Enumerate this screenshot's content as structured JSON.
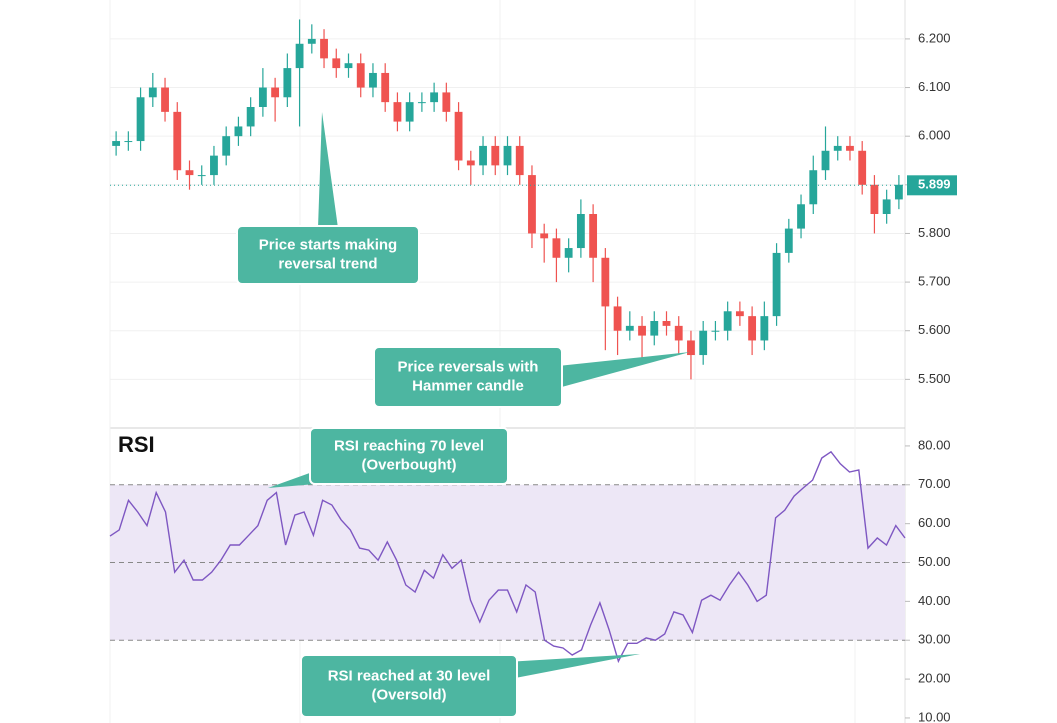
{
  "chart_data": [
    {
      "type": "candlestick",
      "open": [
        5.98,
        5.99,
        5.99,
        6.08,
        6.1,
        6.05,
        5.93,
        5.92,
        5.92,
        5.96,
        6.0,
        6.02,
        6.06,
        6.1,
        6.08,
        6.14,
        6.19,
        6.2,
        6.16,
        6.14,
        6.15,
        6.1,
        6.13,
        6.07,
        6.03,
        6.07,
        6.07,
        6.09,
        6.05,
        5.95,
        5.94,
        5.98,
        5.94,
        5.98,
        5.92,
        5.8,
        5.79,
        5.75,
        5.77,
        5.84,
        5.75,
        5.65,
        5.6,
        5.61,
        5.59,
        5.62,
        5.61,
        5.58,
        5.55,
        5.6,
        5.6,
        5.64,
        5.63,
        5.58,
        5.63,
        5.76,
        5.81,
        5.86,
        5.93,
        5.97,
        5.98,
        5.97,
        5.9,
        5.84,
        5.87
      ],
      "high": [
        6.01,
        6.01,
        6.1,
        6.13,
        6.12,
        6.07,
        5.95,
        5.94,
        5.98,
        6.02,
        6.04,
        6.08,
        6.14,
        6.12,
        6.17,
        6.24,
        6.23,
        6.22,
        6.18,
        6.17,
        6.17,
        6.15,
        6.15,
        6.09,
        6.09,
        6.09,
        6.11,
        6.11,
        6.07,
        5.97,
        6.0,
        6.0,
        6.0,
        6.0,
        5.94,
        5.82,
        5.81,
        5.79,
        5.87,
        5.86,
        5.77,
        5.67,
        5.64,
        5.63,
        5.64,
        5.64,
        5.63,
        5.6,
        5.62,
        5.62,
        5.66,
        5.66,
        5.65,
        5.66,
        5.78,
        5.83,
        5.88,
        5.96,
        6.02,
        6.0,
        6.0,
        5.99,
        5.92,
        5.89,
        5.92
      ],
      "low": [
        5.96,
        5.97,
        5.97,
        6.06,
        6.03,
        5.91,
        5.89,
        5.9,
        5.9,
        5.94,
        5.98,
        6.0,
        6.04,
        6.03,
        6.06,
        6.02,
        6.17,
        6.14,
        6.12,
        6.12,
        6.08,
        6.08,
        6.05,
        6.01,
        6.01,
        6.05,
        6.05,
        6.03,
        5.93,
        5.9,
        5.92,
        5.92,
        5.92,
        5.9,
        5.77,
        5.74,
        5.7,
        5.72,
        5.75,
        5.7,
        5.56,
        5.55,
        5.58,
        5.54,
        5.57,
        5.59,
        5.55,
        5.5,
        5.53,
        5.58,
        5.58,
        5.61,
        5.55,
        5.56,
        5.61,
        5.74,
        5.79,
        5.84,
        5.91,
        5.95,
        5.95,
        5.88,
        5.8,
        5.82,
        5.85
      ],
      "close": [
        5.99,
        5.99,
        6.08,
        6.1,
        6.05,
        5.93,
        5.92,
        5.92,
        5.96,
        6.0,
        6.02,
        6.06,
        6.1,
        6.08,
        6.14,
        6.19,
        6.2,
        6.16,
        6.14,
        6.15,
        6.1,
        6.13,
        6.07,
        6.03,
        6.07,
        6.07,
        6.09,
        6.05,
        5.95,
        5.94,
        5.98,
        5.94,
        5.98,
        5.92,
        5.8,
        5.79,
        5.75,
        5.77,
        5.84,
        5.75,
        5.65,
        5.6,
        5.61,
        5.59,
        5.62,
        5.61,
        5.58,
        5.55,
        5.6,
        5.6,
        5.64,
        5.63,
        5.58,
        5.63,
        5.76,
        5.81,
        5.86,
        5.93,
        5.97,
        5.98,
        5.97,
        5.9,
        5.84,
        5.87,
        5.9
      ],
      "up_color": "#26a69a",
      "down_color": "#ef5350",
      "ylim": [
        5.4,
        6.28
      ],
      "yticks": [
        {
          "value": 5.5,
          "label": "5.500"
        },
        {
          "value": 5.6,
          "label": "5.600"
        },
        {
          "value": 5.7,
          "label": "5.700"
        },
        {
          "value": 5.8,
          "label": "5.800"
        },
        {
          "value": 5.9,
          "label": "5.900"
        },
        {
          "value": 6.0,
          "label": "6.000"
        },
        {
          "value": 6.1,
          "label": "6.100"
        },
        {
          "value": 6.2,
          "label": "6.200"
        }
      ],
      "grid": true,
      "last_value": 5.899,
      "annotations": [
        {
          "lines": [
            "Price starts making",
            "reversal trend"
          ]
        },
        {
          "lines": [
            "Price reversals with",
            "Hammer candle"
          ]
        }
      ]
    },
    {
      "type": "line",
      "title": "RSI",
      "values": [
        56.8,
        58.4,
        66,
        63,
        59.5,
        68,
        63,
        47.5,
        50.6,
        45.5,
        45.5,
        47.5,
        50.6,
        54.5,
        54.5,
        57,
        59.5,
        66,
        68,
        54.5,
        62.2,
        63,
        57,
        66,
        64.8,
        61,
        58.4,
        53.7,
        53.2,
        50.6,
        55.3,
        50.6,
        44.2,
        42.4,
        48,
        46,
        52,
        48.5,
        50.6,
        40.3,
        34.7,
        40.3,
        42.9,
        42.9,
        37.3,
        44.2,
        42.4,
        30,
        28.5,
        28,
        26.2,
        27.5,
        34,
        39.6,
        32.6,
        24.6,
        29.2,
        29.2,
        30.6,
        30,
        31.6,
        37.3,
        36.5,
        32,
        40.3,
        41.6,
        40.3,
        44.2,
        47.5,
        44.2,
        40,
        41.6,
        61.5,
        63.5,
        67.1,
        69.2,
        71.2,
        76.9,
        78.5,
        75.4,
        73.3,
        73.8,
        53.7,
        56.3,
        54.5,
        59.5,
        56.3
      ],
      "color": "#7e57c2",
      "band_color": "#ede7f6",
      "levels": [
        70,
        50,
        30
      ],
      "ylim": [
        8.7,
        84.1
      ],
      "yticks": [
        {
          "value": 10,
          "label": "10.00"
        },
        {
          "value": 20,
          "label": "20.00"
        },
        {
          "value": 30,
          "label": "30.00"
        },
        {
          "value": 40,
          "label": "40.00"
        },
        {
          "value": 50,
          "label": "50.00"
        },
        {
          "value": 60,
          "label": "60.00"
        },
        {
          "value": 70,
          "label": "70.00"
        },
        {
          "value": 80,
          "label": "80.00"
        }
      ],
      "annotations": [
        {
          "lines": [
            "RSI reaching 70 level",
            "(Overbought)"
          ]
        },
        {
          "lines": [
            "RSI reached at 30 level",
            "(Oversold)"
          ]
        }
      ]
    }
  ]
}
